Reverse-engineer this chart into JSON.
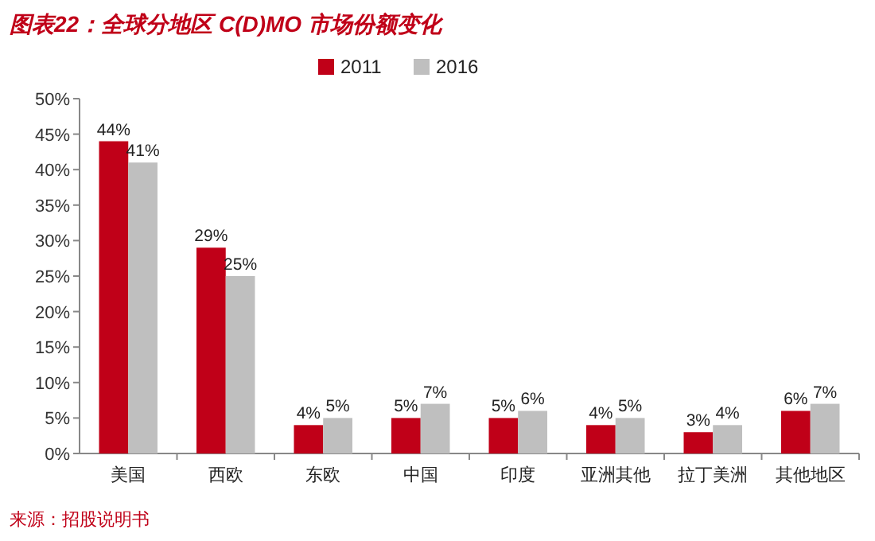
{
  "chart_data": {
    "type": "bar",
    "title": "图表22：全球分地区 C(D)MO 市场份额变化",
    "categories": [
      "美国",
      "西欧",
      "东欧",
      "中国",
      "印度",
      "亚洲其他",
      "拉丁美洲",
      "其他地区"
    ],
    "series": [
      {
        "name": "2011",
        "color": "#c00018",
        "values": [
          44,
          29,
          4,
          5,
          5,
          4,
          3,
          6
        ]
      },
      {
        "name": "2016",
        "color": "#bfbfbf",
        "values": [
          41,
          25,
          5,
          7,
          6,
          5,
          4,
          7
        ]
      }
    ],
    "ylim": [
      0,
      50
    ],
    "yticks": [
      {
        "value": 0,
        "label": "0%"
      },
      {
        "value": 5,
        "label": "5%"
      },
      {
        "value": 10,
        "label": "10%"
      },
      {
        "value": 15,
        "label": "15%"
      },
      {
        "value": 20,
        "label": "20%"
      },
      {
        "value": 25,
        "label": "25%"
      },
      {
        "value": 30,
        "label": "30%"
      },
      {
        "value": 35,
        "label": "35%"
      },
      {
        "value": 40,
        "label": "40%"
      },
      {
        "value": 45,
        "label": "45%"
      },
      {
        "value": 50,
        "label": "50%"
      }
    ],
    "value_labels": [
      [
        "44%",
        "29%",
        "4%",
        "5%",
        "5%",
        "4%",
        "3%",
        "6%"
      ],
      [
        "41%",
        "25%",
        "5%",
        "7%",
        "6%",
        "5%",
        "4%",
        "7%"
      ]
    ],
    "legend": "top",
    "annotations": [
      "来源：招股说明书"
    ]
  }
}
